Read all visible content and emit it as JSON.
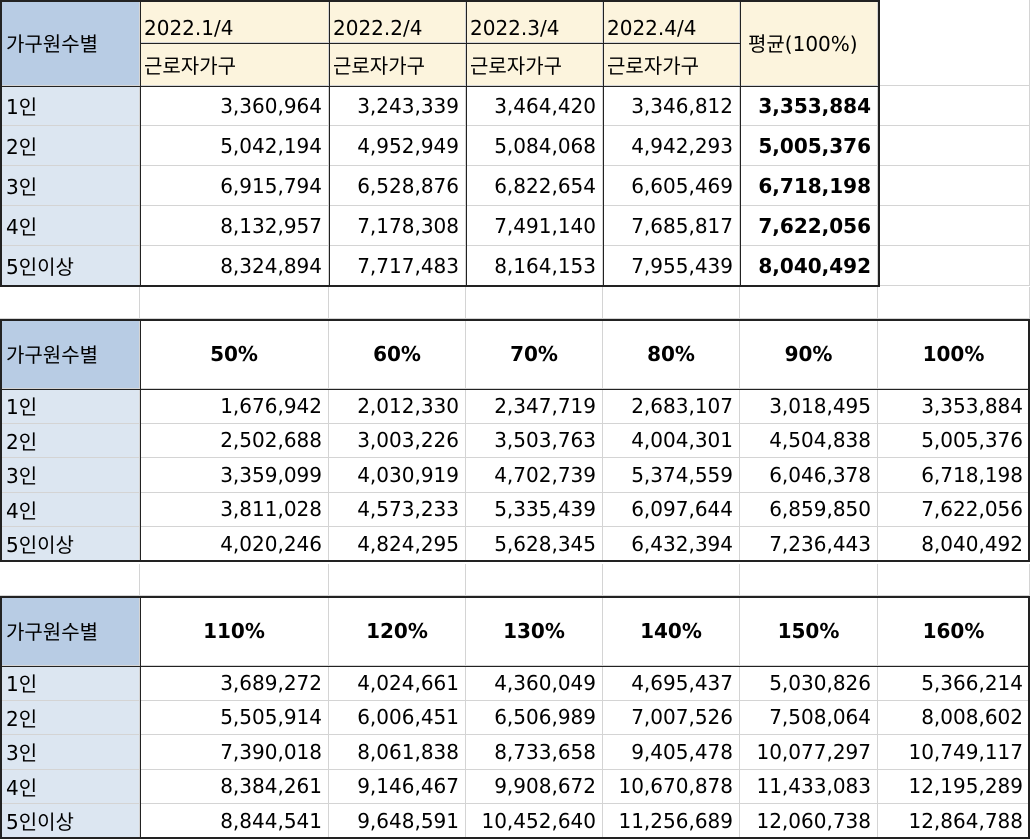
{
  "block1": {
    "row_header": "가구원수별",
    "columns": [
      {
        "period": "2022.1/4",
        "type": "근로자가구"
      },
      {
        "period": "2022.2/4",
        "type": "근로자가구"
      },
      {
        "period": "2022.3/4",
        "type": "근로자가구"
      },
      {
        "period": "2022.4/4",
        "type": "근로자가구"
      }
    ],
    "avg_header": "평균(100%)",
    "rows": [
      {
        "label": "1인",
        "values": [
          "3,360,964",
          "3,243,339",
          "3,464,420",
          "3,346,812"
        ],
        "avg": "3,353,884"
      },
      {
        "label": "2인",
        "values": [
          "5,042,194",
          "4,952,949",
          "5,084,068",
          "4,942,293"
        ],
        "avg": "5,005,376"
      },
      {
        "label": "3인",
        "values": [
          "6,915,794",
          "6,528,876",
          "6,822,654",
          "6,605,469"
        ],
        "avg": "6,718,198"
      },
      {
        "label": "4인",
        "values": [
          "8,132,957",
          "7,178,308",
          "7,491,140",
          "7,685,817"
        ],
        "avg": "7,622,056"
      },
      {
        "label": "5인이상",
        "values": [
          "8,324,894",
          "7,717,483",
          "8,164,153",
          "7,955,439"
        ],
        "avg": "8,040,492"
      }
    ]
  },
  "block2": {
    "row_header": "가구원수별",
    "headers": [
      "50%",
      "60%",
      "70%",
      "80%",
      "90%",
      "100%"
    ],
    "rows": [
      {
        "label": "1인",
        "values": [
          "1,676,942",
          "2,012,330",
          "2,347,719",
          "2,683,107",
          "3,018,495",
          "3,353,884"
        ]
      },
      {
        "label": "2인",
        "values": [
          "2,502,688",
          "3,003,226",
          "3,503,763",
          "4,004,301",
          "4,504,838",
          "5,005,376"
        ]
      },
      {
        "label": "3인",
        "values": [
          "3,359,099",
          "4,030,919",
          "4,702,739",
          "5,374,559",
          "6,046,378",
          "6,718,198"
        ]
      },
      {
        "label": "4인",
        "values": [
          "3,811,028",
          "4,573,233",
          "5,335,439",
          "6,097,644",
          "6,859,850",
          "7,622,056"
        ]
      },
      {
        "label": "5인이상",
        "values": [
          "4,020,246",
          "4,824,295",
          "5,628,345",
          "6,432,394",
          "7,236,443",
          "8,040,492"
        ]
      }
    ]
  },
  "block3": {
    "row_header": "가구원수별",
    "headers": [
      "110%",
      "120%",
      "130%",
      "140%",
      "150%",
      "160%"
    ],
    "rows": [
      {
        "label": "1인",
        "values": [
          "3,689,272",
          "4,024,661",
          "4,360,049",
          "4,695,437",
          "5,030,826",
          "5,366,214"
        ]
      },
      {
        "label": "2인",
        "values": [
          "5,505,914",
          "6,006,451",
          "6,506,989",
          "7,007,526",
          "7,508,064",
          "8,008,602"
        ]
      },
      {
        "label": "3인",
        "values": [
          "7,390,018",
          "8,061,838",
          "8,733,658",
          "9,405,478",
          "10,077,297",
          "10,749,117"
        ]
      },
      {
        "label": "4인",
        "values": [
          "8,384,261",
          "9,146,467",
          "9,908,672",
          "10,670,878",
          "11,433,083",
          "12,195,289"
        ]
      },
      {
        "label": "5인이상",
        "values": [
          "8,844,541",
          "9,648,591",
          "10,452,640",
          "11,256,689",
          "12,060,738",
          "12,864,788"
        ]
      }
    ]
  }
}
